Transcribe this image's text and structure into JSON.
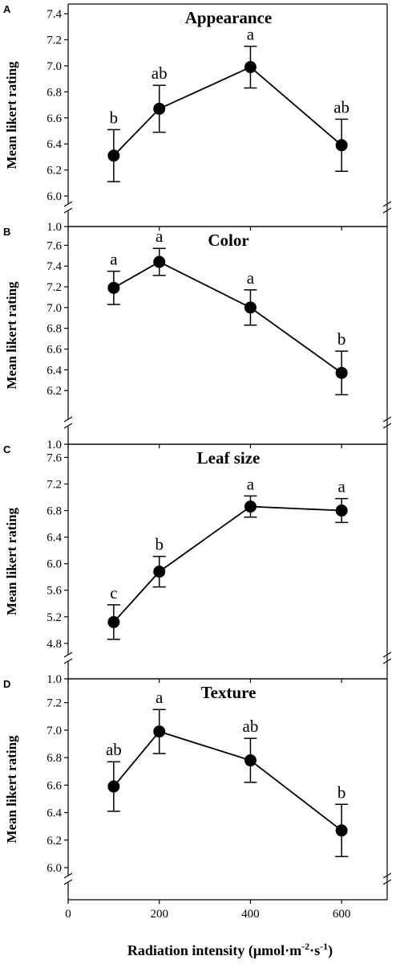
{
  "chart_data": {
    "type": "line",
    "xlabel": "Radiation intensity (μmol·m",
    "xlabel_sup1": "-2",
    "xlabel_mid": "·s",
    "xlabel_sup2": "-1",
    "xlabel_end": ")",
    "xlim": [
      0,
      700
    ],
    "x_ticks": [
      0,
      200,
      400,
      600
    ],
    "x_tick_labels": [
      "0",
      "200",
      "400",
      "600"
    ],
    "panels": [
      {
        "letter": "A",
        "title": "Appearance",
        "ylabel": "Mean likert rating",
        "ylim": [
          6.0,
          7.45
        ],
        "y_ticks": [
          6.0,
          6.2,
          6.4,
          6.6,
          6.8,
          7.0,
          7.2,
          7.4
        ],
        "y_tick_labels": [
          "6.0",
          "6.2",
          "6.4",
          "6.6",
          "6.8",
          "7.0",
          "7.2",
          "7.4"
        ],
        "broken_axis_label": "",
        "x": [
          100,
          200,
          400,
          600
        ],
        "y": [
          6.31,
          6.67,
          6.99,
          6.39
        ],
        "err": [
          0.2,
          0.18,
          0.16,
          0.2
        ],
        "sig": [
          "b",
          "ab",
          "a",
          "ab"
        ]
      },
      {
        "letter": "B",
        "title": "Color",
        "ylabel": "Mean likert rating",
        "ylim": [
          6.0,
          7.75
        ],
        "y_ticks": [
          6.2,
          6.4,
          6.6,
          6.8,
          7.0,
          7.2,
          7.4,
          7.6
        ],
        "y_tick_labels": [
          "6.2",
          "6.4",
          "6.6",
          "6.8",
          "7.0",
          "7.2",
          "7.4",
          "7.6"
        ],
        "broken_axis_label": "1.0",
        "x": [
          100,
          200,
          400,
          600
        ],
        "y": [
          7.19,
          7.44,
          7.0,
          6.37
        ],
        "err": [
          0.16,
          0.13,
          0.17,
          0.21
        ],
        "sig": [
          "a",
          "a",
          "a",
          "b"
        ]
      },
      {
        "letter": "C",
        "title": "Leaf size",
        "ylabel": "Mean likert rating",
        "ylim": [
          4.75,
          7.75
        ],
        "y_ticks": [
          4.8,
          5.2,
          5.6,
          6.0,
          6.4,
          6.8,
          7.2,
          7.6
        ],
        "y_tick_labels": [
          "4.8",
          "5.2",
          "5.6",
          "6.0",
          "6.4",
          "6.8",
          "7.2",
          "7.6"
        ],
        "broken_axis_label": "1.0",
        "x": [
          100,
          200,
          400,
          600
        ],
        "y": [
          5.12,
          5.88,
          6.86,
          6.8
        ],
        "err": [
          0.26,
          0.23,
          0.16,
          0.18
        ],
        "sig": [
          "c",
          "b",
          "a",
          "a"
        ]
      },
      {
        "letter": "D",
        "title": "Texture",
        "ylabel": "Mean likert rating",
        "ylim": [
          6.0,
          7.35
        ],
        "y_ticks": [
          6.0,
          6.2,
          6.4,
          6.6,
          6.8,
          7.0,
          7.2
        ],
        "y_tick_labels": [
          "6.0",
          "6.2",
          "6.4",
          "6.6",
          "6.8",
          "7.0",
          "7.2"
        ],
        "broken_axis_label": "1.0",
        "x": [
          100,
          200,
          400,
          600
        ],
        "y": [
          6.59,
          6.99,
          6.78,
          6.27
        ],
        "err": [
          0.18,
          0.16,
          0.16,
          0.19
        ],
        "sig": [
          "ab",
          "a",
          "ab",
          "b"
        ]
      }
    ]
  }
}
